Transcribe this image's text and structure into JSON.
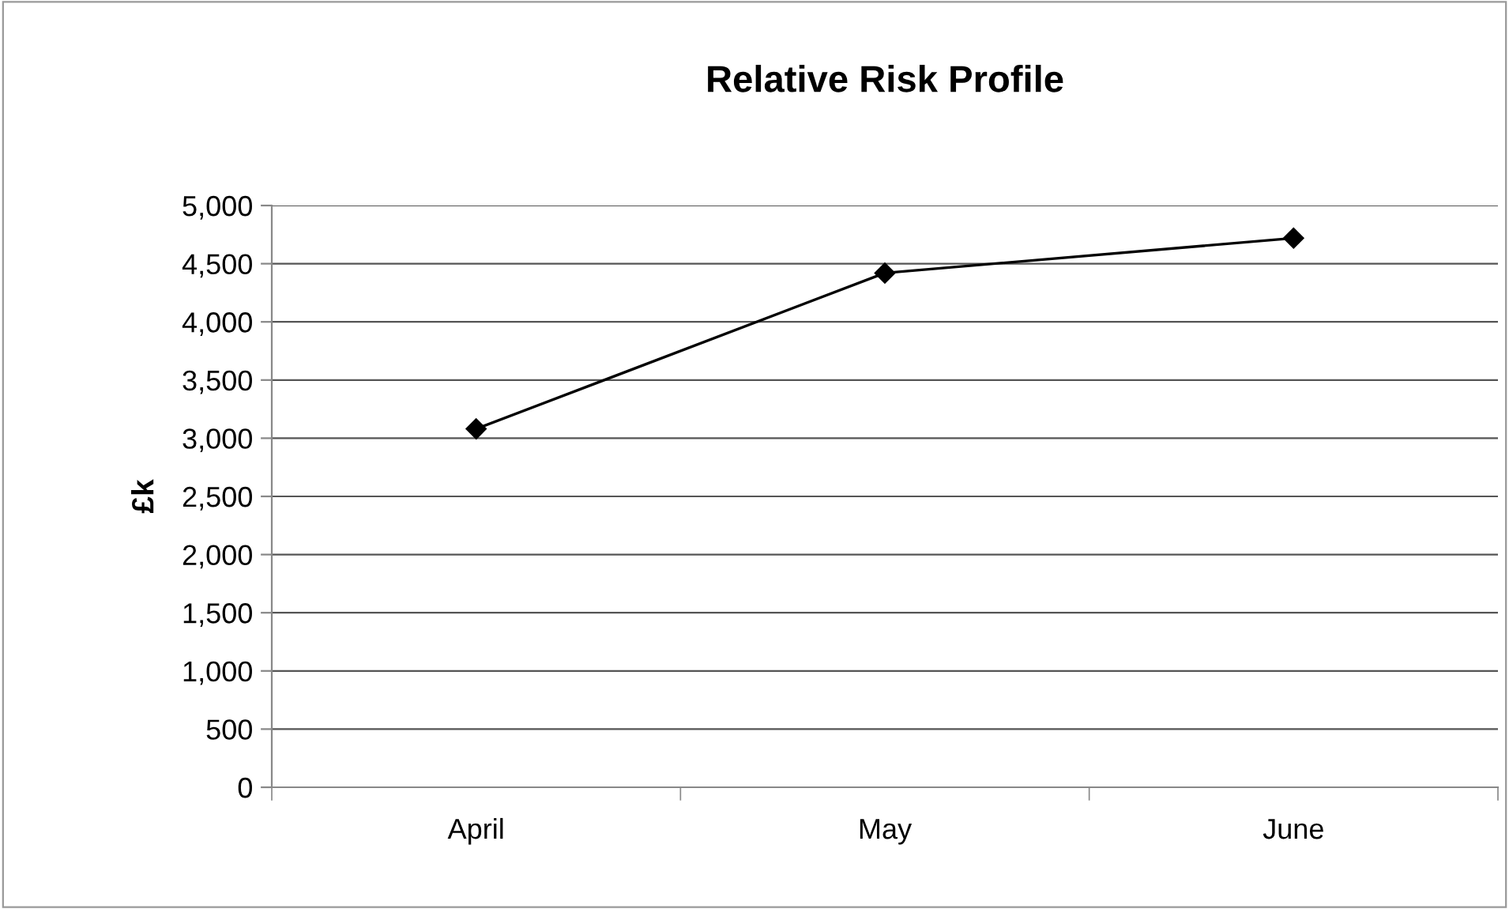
{
  "chart_data": {
    "type": "line",
    "title": "Relative Risk Profile",
    "ylabel": "£k",
    "categories": [
      "April",
      "May",
      "June"
    ],
    "series": [
      {
        "color": "#000000",
        "values": [
          3080,
          4420,
          4720
        ]
      }
    ],
    "ylim": [
      0,
      5000
    ],
    "yticks": [
      {
        "value": 0,
        "label": "0"
      },
      {
        "value": 500,
        "label": "500"
      },
      {
        "value": 1000,
        "label": "1,000"
      },
      {
        "value": 1500,
        "label": "1,500"
      },
      {
        "value": 2000,
        "label": "2,000"
      },
      {
        "value": 2500,
        "label": "2,500"
      },
      {
        "value": 3000,
        "label": "3,000"
      },
      {
        "value": 3500,
        "label": "3,500"
      },
      {
        "value": 4000,
        "label": "4,000"
      },
      {
        "value": 4500,
        "label": "4,500"
      },
      {
        "value": 5000,
        "label": "5,000"
      }
    ],
    "grid": "y",
    "marker": "diamond",
    "line_style": "solid"
  }
}
